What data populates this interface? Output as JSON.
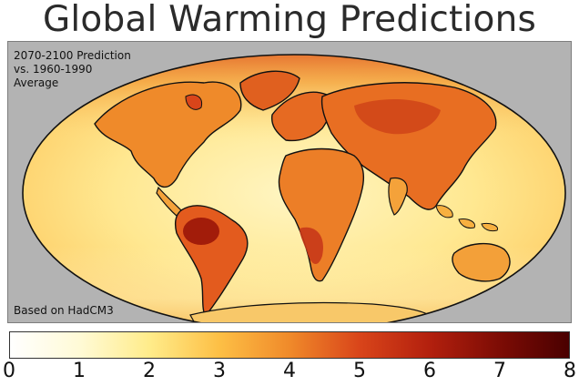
{
  "title": "Global Warming Predictions",
  "map": {
    "note_lines": [
      "2070-2100 Prediction",
      "vs. 1960-1990",
      "Average"
    ],
    "source": "Based on HadCM3"
  },
  "colorbar": {
    "min": 0,
    "max": 8,
    "ticks": [
      "0",
      "1",
      "2",
      "3",
      "4",
      "5",
      "6",
      "7",
      "8"
    ],
    "colors": [
      "#ffffff",
      "#fffad6",
      "#ffec8a",
      "#fdbf45",
      "#f08a2a",
      "#d9451a",
      "#b3200e",
      "#7d0c05",
      "#4a0000"
    ]
  }
}
